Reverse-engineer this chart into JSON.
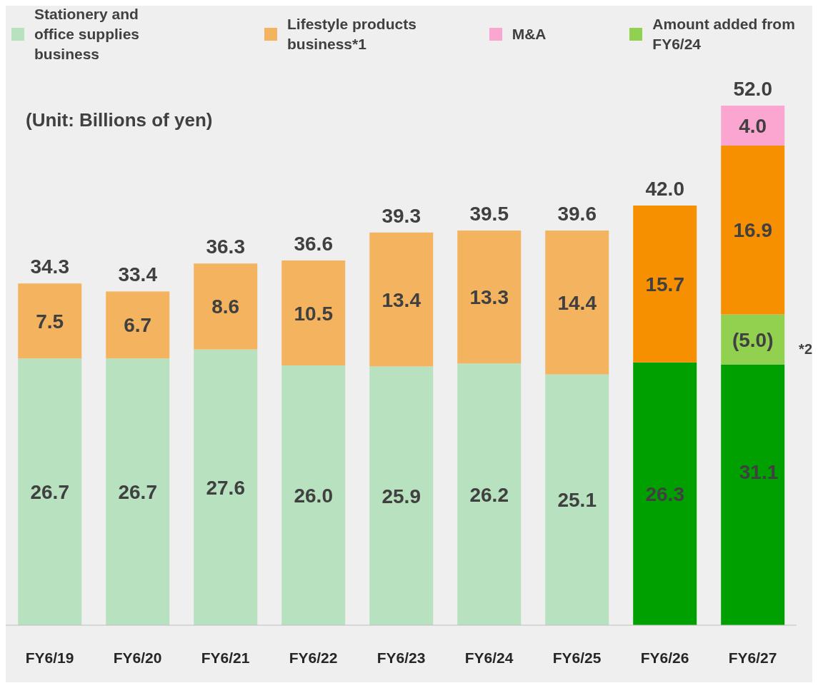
{
  "chart_data": {
    "type": "bar",
    "stacked": true,
    "legend": "top",
    "grid": false,
    "categories": [
      "FY6/19",
      "FY6/20",
      "FY6/21",
      "FY6/22",
      "FY6/23",
      "FY6/24",
      "FY6/25",
      "FY6/26",
      "FY6/27"
    ],
    "series": [
      {
        "name": "Stationery and office supplies business",
        "color": "#b7e1bf",
        "colors": [
          "#b7e1bf",
          "#b7e1bf",
          "#b7e1bf",
          "#b7e1bf",
          "#b7e1bf",
          "#b7e1bf",
          "#b7e1bf",
          "#00a000",
          "#00a000"
        ],
        "values": [
          26.7,
          26.7,
          27.6,
          26.0,
          25.9,
          26.2,
          25.1,
          26.3,
          26.1
        ],
        "value_labels": [
          "26.7",
          "26.7",
          "27.6",
          "26.0",
          "25.9",
          "26.2",
          "25.1",
          "26.3",
          null
        ]
      },
      {
        "name": "Amount added from FY6/24",
        "color": "#92d050",
        "values": [
          null,
          null,
          null,
          null,
          null,
          null,
          null,
          null,
          5.0
        ],
        "value_labels": [
          null,
          null,
          null,
          null,
          null,
          null,
          null,
          null,
          "(5.0)"
        ]
      },
      {
        "name": "Lifestyle products business*1",
        "color": "#f4b35f",
        "colors": [
          "#f4b35f",
          "#f4b35f",
          "#f4b35f",
          "#f4b35f",
          "#f4b35f",
          "#f4b35f",
          "#f4b35f",
          "#f79000",
          "#f79000"
        ],
        "values": [
          7.5,
          6.7,
          8.6,
          10.5,
          13.4,
          13.3,
          14.4,
          15.7,
          16.9
        ],
        "value_labels": [
          "7.5",
          "6.7",
          "8.6",
          "10.5",
          "13.4",
          "13.3",
          "14.4",
          "15.7",
          "16.9"
        ]
      },
      {
        "name": "M&A",
        "color": "#fba6d1",
        "values": [
          null,
          null,
          null,
          null,
          null,
          null,
          null,
          null,
          4.0
        ],
        "value_labels": [
          null,
          null,
          null,
          null,
          null,
          null,
          null,
          null,
          "4.0"
        ]
      }
    ],
    "totals": [
      "34.3",
      "33.4",
      "36.3",
      "36.6",
      "39.3",
      "39.5",
      "39.6",
      "42.0",
      "52.0"
    ],
    "annotations": [
      "(Unit: Billions of yen)",
      "*2",
      "31.1"
    ]
  }
}
